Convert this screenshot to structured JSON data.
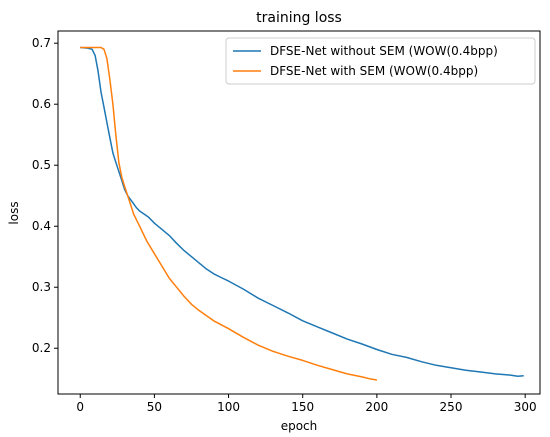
{
  "chart_data": {
    "type": "line",
    "title": "training loss",
    "xlabel": "epoch",
    "ylabel": "loss",
    "xlim": [
      -15,
      310
    ],
    "ylim": [
      0.125,
      0.72
    ],
    "x_ticks": [
      0,
      50,
      100,
      150,
      200,
      250,
      300
    ],
    "y_ticks": [
      0.2,
      0.3,
      0.4,
      0.5,
      0.6,
      0.7
    ],
    "grid": false,
    "legend_position": "top-right",
    "series": [
      {
        "name": "DFSE-Net without SEM (WOW(0.4bpp)",
        "color": "#1f77b4",
        "x": [
          0,
          5,
          8,
          10,
          12,
          14,
          16,
          18,
          20,
          22,
          24,
          26,
          28,
          30,
          32,
          35,
          38,
          40,
          43,
          46,
          50,
          55,
          60,
          65,
          70,
          75,
          80,
          85,
          90,
          95,
          100,
          110,
          120,
          130,
          140,
          150,
          160,
          170,
          180,
          190,
          200,
          210,
          220,
          230,
          240,
          250,
          260,
          270,
          280,
          290,
          295,
          299
        ],
        "y": [
          0.693,
          0.692,
          0.69,
          0.68,
          0.655,
          0.62,
          0.595,
          0.57,
          0.545,
          0.52,
          0.505,
          0.49,
          0.475,
          0.46,
          0.45,
          0.44,
          0.43,
          0.425,
          0.42,
          0.415,
          0.405,
          0.395,
          0.385,
          0.372,
          0.36,
          0.35,
          0.34,
          0.33,
          0.322,
          0.316,
          0.31,
          0.297,
          0.282,
          0.27,
          0.258,
          0.245,
          0.235,
          0.225,
          0.215,
          0.207,
          0.198,
          0.19,
          0.185,
          0.178,
          0.172,
          0.168,
          0.164,
          0.161,
          0.158,
          0.156,
          0.154,
          0.155
        ]
      },
      {
        "name": "DFSE-Net with SEM (WOW(0.4bpp)",
        "color": "#ff7f0e",
        "x": [
          0,
          10,
          14,
          16,
          18,
          20,
          22,
          24,
          26,
          28,
          30,
          32,
          34,
          36,
          40,
          45,
          50,
          55,
          60,
          65,
          70,
          75,
          80,
          90,
          100,
          110,
          120,
          130,
          140,
          150,
          160,
          170,
          180,
          190,
          195,
          200
        ],
        "y": [
          0.693,
          0.693,
          0.693,
          0.69,
          0.675,
          0.64,
          0.6,
          0.55,
          0.505,
          0.48,
          0.465,
          0.45,
          0.435,
          0.42,
          0.4,
          0.375,
          0.355,
          0.335,
          0.315,
          0.3,
          0.285,
          0.272,
          0.262,
          0.245,
          0.232,
          0.218,
          0.205,
          0.195,
          0.187,
          0.18,
          0.172,
          0.165,
          0.158,
          0.153,
          0.15,
          0.148
        ]
      }
    ]
  }
}
